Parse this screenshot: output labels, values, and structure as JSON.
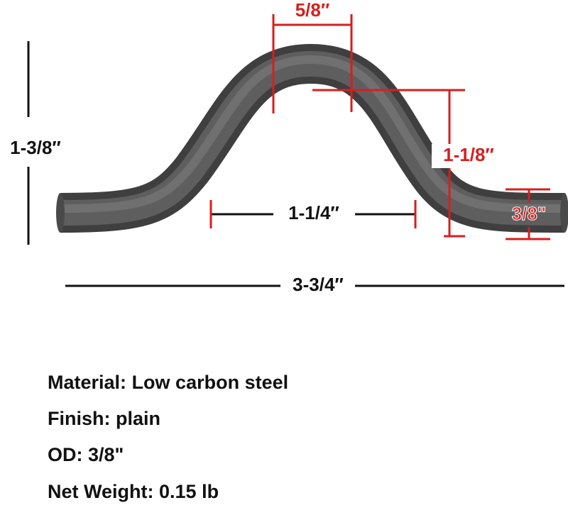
{
  "dimensions": {
    "overall_height": "1-3/8″",
    "top_inner_width": "5/8″",
    "bend_height": "1-1/8″",
    "base_gap": "1-1/4″",
    "tube_diameter": "3/8\"",
    "overall_length": "3-3/4″"
  },
  "specs": [
    {
      "label": "Material:",
      "value": "Low carbon steel"
    },
    {
      "label": "Finish:",
      "value": "plain"
    },
    {
      "label": "OD:",
      "value": "3/8\""
    },
    {
      "label": "Net Weight:",
      "value": "0.15 lb"
    }
  ]
}
